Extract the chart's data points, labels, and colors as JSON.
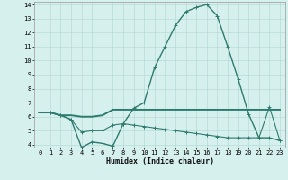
{
  "xlabel": "Humidex (Indice chaleur)",
  "x": [
    0,
    1,
    2,
    3,
    4,
    5,
    6,
    7,
    8,
    9,
    10,
    11,
    12,
    13,
    14,
    15,
    16,
    17,
    18,
    19,
    20,
    21,
    22,
    23
  ],
  "line1": [
    6.3,
    6.3,
    6.1,
    5.8,
    3.8,
    4.2,
    4.1,
    3.9,
    5.5,
    6.6,
    7.0,
    9.5,
    11.0,
    12.5,
    13.5,
    13.8,
    14.0,
    13.2,
    11.0,
    8.7,
    6.2,
    4.5,
    4.5,
    4.3
  ],
  "line2": [
    6.3,
    6.3,
    6.1,
    6.1,
    6.0,
    6.0,
    6.1,
    6.5,
    6.5,
    6.5,
    6.5,
    6.5,
    6.5,
    6.5,
    6.5,
    6.5,
    6.5,
    6.5,
    6.5,
    6.5,
    6.5,
    6.5,
    6.5,
    6.5
  ],
  "line3": [
    6.3,
    6.3,
    6.1,
    5.8,
    4.9,
    5.0,
    5.0,
    5.4,
    5.5,
    5.4,
    5.3,
    5.2,
    5.1,
    5.0,
    4.9,
    4.8,
    4.7,
    4.6,
    4.5,
    4.5,
    4.5,
    4.5,
    6.7,
    4.3
  ],
  "ylim": [
    4,
    14
  ],
  "xlim": [
    -0.5,
    23.5
  ],
  "yticks": [
    4,
    5,
    6,
    7,
    8,
    9,
    10,
    11,
    12,
    13,
    14
  ],
  "xticks": [
    0,
    1,
    2,
    3,
    4,
    5,
    6,
    7,
    8,
    9,
    10,
    11,
    12,
    13,
    14,
    15,
    16,
    17,
    18,
    19,
    20,
    21,
    22,
    23
  ],
  "line_color": "#2d7a6e",
  "bg_color": "#d6f0ee",
  "grid_color": "#b8dbd8",
  "xlabel_fontsize": 6.0,
  "tick_fontsize": 5.0,
  "linewidth1": 1.0,
  "linewidth2": 1.4,
  "linewidth3": 0.8
}
